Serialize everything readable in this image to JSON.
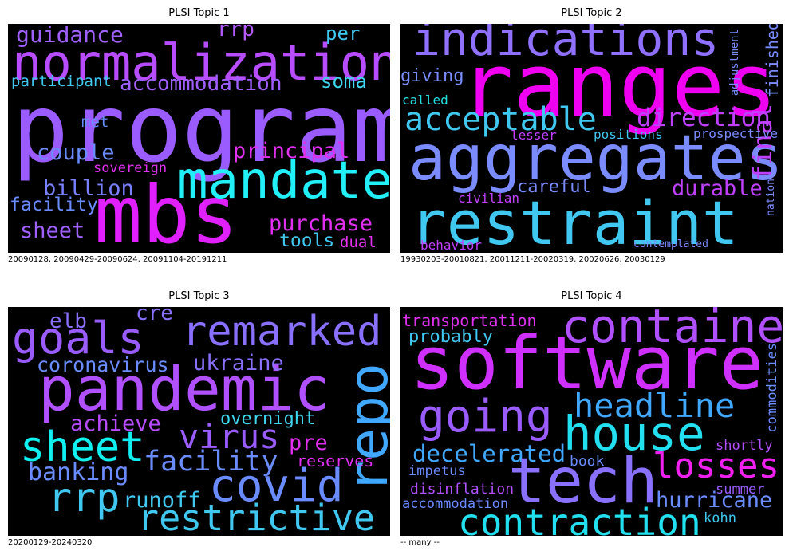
{
  "panels": [
    {
      "title": "PLSI Topic 1",
      "caption": "20090128, 20090429-20090624, 20091104-20191211",
      "words": [
        {
          "text": "program",
          "color": "#9b5cff"
        },
        {
          "text": "normalization",
          "color": "#b84cff"
        },
        {
          "text": "mbs",
          "color": "#e020ff"
        },
        {
          "text": "mandate",
          "color": "#22f0f8"
        },
        {
          "text": "guidance",
          "color": "#a060ff"
        },
        {
          "text": "rrp",
          "color": "#b45aff"
        },
        {
          "text": "per",
          "color": "#40c8f0"
        },
        {
          "text": "participant",
          "color": "#40c8f0"
        },
        {
          "text": "accommodation",
          "color": "#a060ff"
        },
        {
          "text": "soma",
          "color": "#40d8f0"
        },
        {
          "text": "met",
          "color": "#6a8cff"
        },
        {
          "text": "couple",
          "color": "#6a8cff"
        },
        {
          "text": "principal",
          "color": "#e030f0"
        },
        {
          "text": "sovereign",
          "color": "#e030f0"
        },
        {
          "text": "billion",
          "color": "#7a80ff"
        },
        {
          "text": "facility",
          "color": "#6a8cff"
        },
        {
          "text": "sheet",
          "color": "#a060ff"
        },
        {
          "text": "purchase",
          "color": "#e030f0"
        },
        {
          "text": "tools",
          "color": "#40c8f0"
        },
        {
          "text": "dual",
          "color": "#e030f0"
        }
      ]
    },
    {
      "title": "PLSI Topic 2",
      "caption": "19930203-20010821, 20011211-20020319, 20020626, 20030129",
      "words": [
        {
          "text": "indications",
          "color": "#9070ff"
        },
        {
          "text": "ranges",
          "color": "#f000f0"
        },
        {
          "text": "aggregates",
          "color": "#7a8cff"
        },
        {
          "text": "restraint",
          "color": "#40c8f0"
        },
        {
          "text": "acceptable",
          "color": "#40c8f0"
        },
        {
          "text": "direction",
          "color": "#c040ff"
        },
        {
          "text": "final",
          "color": "#c040ff"
        },
        {
          "text": "finished",
          "color": "#7a8cff"
        },
        {
          "text": "adjustment",
          "color": "#7a8cff"
        },
        {
          "text": "giving",
          "color": "#7a8cff"
        },
        {
          "text": "called",
          "color": "#22e0e0"
        },
        {
          "text": "lesser",
          "color": "#c040ff"
        },
        {
          "text": "positions",
          "color": "#40c8f0"
        },
        {
          "text": "prospective",
          "color": "#7a8cff"
        },
        {
          "text": "careful",
          "color": "#7a8cff"
        },
        {
          "text": "durable",
          "color": "#c040ff"
        },
        {
          "text": "civilian",
          "color": "#c040ff"
        },
        {
          "text": "nation",
          "color": "#7a8cff"
        },
        {
          "text": "behavior",
          "color": "#c040ff"
        },
        {
          "text": "contemplated",
          "color": "#7a8cff"
        }
      ]
    },
    {
      "title": "PLSI Topic 3",
      "caption": "20200129-20240320",
      "words": [
        {
          "text": "pandemic",
          "color": "#b050ff"
        },
        {
          "text": "goals",
          "color": "#9b5cff"
        },
        {
          "text": "remarked",
          "color": "#8a70ff"
        },
        {
          "text": "elb",
          "color": "#8a70ff"
        },
        {
          "text": "cre",
          "color": "#8a70ff"
        },
        {
          "text": "coronavirus",
          "color": "#6a8cff"
        },
        {
          "text": "ukraine",
          "color": "#8a70ff"
        },
        {
          "text": "repo",
          "color": "#40a8ff"
        },
        {
          "text": "sheet",
          "color": "#10f0f0"
        },
        {
          "text": "achieve",
          "color": "#b84cff"
        },
        {
          "text": "overnight",
          "color": "#40d8f0"
        },
        {
          "text": "virus",
          "color": "#9b5cff"
        },
        {
          "text": "pre",
          "color": "#e030f0"
        },
        {
          "text": "facility",
          "color": "#6a8cff"
        },
        {
          "text": "reserves",
          "color": "#e030f0"
        },
        {
          "text": "banking",
          "color": "#6a8cff"
        },
        {
          "text": "rrp",
          "color": "#40c8f0"
        },
        {
          "text": "runoff",
          "color": "#40c8f0"
        },
        {
          "text": "covid",
          "color": "#6a8cff"
        },
        {
          "text": "restrictive",
          "color": "#40c8f0"
        }
      ]
    },
    {
      "title": "PLSI Topic 4",
      "caption": "-- many --",
      "words": [
        {
          "text": "transportation",
          "color": "#e030f0"
        },
        {
          "text": "contained",
          "color": "#b050ff"
        },
        {
          "text": "probably",
          "color": "#40c8f0"
        },
        {
          "text": "software",
          "color": "#d030ff"
        },
        {
          "text": "commodities",
          "color": "#6a8cff"
        },
        {
          "text": "going",
          "color": "#9b5cff"
        },
        {
          "text": "headline",
          "color": "#40a8ff"
        },
        {
          "text": "house",
          "color": "#22e0f0"
        },
        {
          "text": "decelerated",
          "color": "#40a8ff"
        },
        {
          "text": "impetus",
          "color": "#6a8cff"
        },
        {
          "text": "book",
          "color": "#6a8cff"
        },
        {
          "text": "shortly",
          "color": "#b050ff"
        },
        {
          "text": "tech",
          "color": "#8a70ff"
        },
        {
          "text": "losses",
          "color": "#f020f0"
        },
        {
          "text": "disinflation",
          "color": "#b050ff"
        },
        {
          "text": "summer",
          "color": "#9b5cff"
        },
        {
          "text": "accommodation",
          "color": "#6a8cff"
        },
        {
          "text": "hurricane",
          "color": "#6a8cff"
        },
        {
          "text": "contraction",
          "color": "#22e0f0"
        },
        {
          "text": "kohn",
          "color": "#40c8f0"
        }
      ]
    }
  ]
}
